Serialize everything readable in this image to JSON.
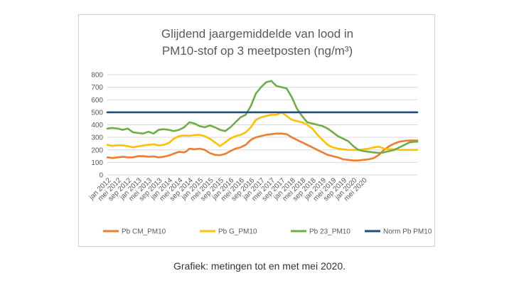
{
  "caption": "Grafiek: metingen tot en met mei 2020.",
  "chart_data": {
    "type": "line",
    "title": [
      "Glijdend jaargemiddelde van lood in",
      "PM10-stof op 3 meetposten (ng/m³)"
    ],
    "xlabel": "",
    "ylabel": "",
    "ylim": [
      0,
      800
    ],
    "yticks": [
      0,
      100,
      200,
      300,
      400,
      500,
      600,
      700,
      800
    ],
    "grid": "horizontal",
    "legend_position": "bottom",
    "x_start": "jan 2012",
    "x_end": "mei 2020",
    "tick_labels": [
      "jan 2012",
      "mei 2012",
      "sep 2012",
      "jan 2013",
      "mei 2013",
      "sep 2013",
      "jan 2014",
      "mei 2014",
      "sep 2014",
      "jan 2015",
      "mei 2015",
      "sep 2015",
      "jan 2016",
      "mei 2016",
      "sep 2016",
      "jan 2017",
      "mei 2017",
      "sep 2017",
      "jan 2018",
      "mei 2018",
      "sep 2018",
      "jan 2019",
      "mei 2019",
      "sep 2019",
      "jan 2020",
      "mei 2020"
    ],
    "series": [
      {
        "name": "Pb CM_PM10",
        "color": "#ED7D31",
        "values": [
          [
            0,
            140
          ],
          [
            2,
            135
          ],
          [
            4,
            140
          ],
          [
            6,
            145
          ],
          [
            8,
            140
          ],
          [
            10,
            140
          ],
          [
            12,
            150
          ],
          [
            14,
            150
          ],
          [
            16,
            145
          ],
          [
            18,
            148
          ],
          [
            20,
            140
          ],
          [
            22,
            145
          ],
          [
            24,
            155
          ],
          [
            26,
            170
          ],
          [
            28,
            185
          ],
          [
            30,
            180
          ],
          [
            31,
            190
          ],
          [
            32,
            210
          ],
          [
            34,
            205
          ],
          [
            36,
            210
          ],
          [
            38,
            200
          ],
          [
            40,
            175
          ],
          [
            42,
            160
          ],
          [
            44,
            158
          ],
          [
            46,
            168
          ],
          [
            48,
            190
          ],
          [
            50,
            210
          ],
          [
            52,
            220
          ],
          [
            54,
            240
          ],
          [
            56,
            280
          ],
          [
            58,
            300
          ],
          [
            60,
            310
          ],
          [
            62,
            320
          ],
          [
            64,
            325
          ],
          [
            66,
            330
          ],
          [
            68,
            330
          ],
          [
            70,
            325
          ],
          [
            72,
            300
          ],
          [
            74,
            280
          ],
          [
            76,
            260
          ],
          [
            78,
            240
          ],
          [
            80,
            220
          ],
          [
            82,
            200
          ],
          [
            84,
            180
          ],
          [
            86,
            160
          ],
          [
            88,
            150
          ],
          [
            90,
            140
          ],
          [
            92,
            125
          ],
          [
            94,
            120
          ],
          [
            96,
            115
          ],
          [
            98,
            115
          ],
          [
            100,
            120
          ],
          [
            102,
            125
          ],
          [
            104,
            135
          ],
          [
            106,
            160
          ],
          [
            108,
            200
          ],
          [
            110,
            230
          ],
          [
            112,
            250
          ],
          [
            114,
            265
          ],
          [
            116,
            272
          ],
          [
            118,
            275
          ],
          [
            120,
            275
          ],
          [
            121,
            275
          ]
        ]
      },
      {
        "name": "Pb G_PM10",
        "color": "#FFC000",
        "values": [
          [
            0,
            240
          ],
          [
            2,
            232
          ],
          [
            4,
            238
          ],
          [
            6,
            236
          ],
          [
            8,
            230
          ],
          [
            10,
            220
          ],
          [
            12,
            228
          ],
          [
            14,
            235
          ],
          [
            16,
            240
          ],
          [
            18,
            245
          ],
          [
            20,
            235
          ],
          [
            22,
            240
          ],
          [
            24,
            255
          ],
          [
            26,
            290
          ],
          [
            28,
            310
          ],
          [
            30,
            315
          ],
          [
            32,
            312
          ],
          [
            34,
            318
          ],
          [
            36,
            320
          ],
          [
            38,
            310
          ],
          [
            40,
            290
          ],
          [
            42,
            260
          ],
          [
            44,
            230
          ],
          [
            46,
            260
          ],
          [
            48,
            290
          ],
          [
            50,
            310
          ],
          [
            52,
            320
          ],
          [
            54,
            340
          ],
          [
            56,
            380
          ],
          [
            58,
            440
          ],
          [
            60,
            460
          ],
          [
            62,
            470
          ],
          [
            64,
            480
          ],
          [
            66,
            480
          ],
          [
            68,
            500
          ],
          [
            70,
            470
          ],
          [
            72,
            440
          ],
          [
            74,
            430
          ],
          [
            76,
            420
          ],
          [
            78,
            400
          ],
          [
            80,
            370
          ],
          [
            82,
            320
          ],
          [
            84,
            280
          ],
          [
            86,
            240
          ],
          [
            88,
            220
          ],
          [
            90,
            210
          ],
          [
            92,
            205
          ],
          [
            94,
            200
          ],
          [
            96,
            200
          ],
          [
            98,
            200
          ],
          [
            100,
            205
          ],
          [
            102,
            210
          ],
          [
            104,
            220
          ],
          [
            106,
            225
          ],
          [
            108,
            210
          ],
          [
            110,
            205
          ],
          [
            112,
            205
          ],
          [
            114,
            200
          ],
          [
            116,
            200
          ],
          [
            118,
            200
          ],
          [
            120,
            200
          ],
          [
            121,
            200
          ]
        ]
      },
      {
        "name": "Pb 23_PM10",
        "color": "#70AD47",
        "values": [
          [
            0,
            370
          ],
          [
            2,
            375
          ],
          [
            4,
            370
          ],
          [
            6,
            360
          ],
          [
            8,
            370
          ],
          [
            10,
            340
          ],
          [
            12,
            335
          ],
          [
            14,
            330
          ],
          [
            16,
            345
          ],
          [
            18,
            330
          ],
          [
            20,
            360
          ],
          [
            22,
            365
          ],
          [
            24,
            360
          ],
          [
            26,
            350
          ],
          [
            28,
            360
          ],
          [
            30,
            380
          ],
          [
            32,
            420
          ],
          [
            34,
            410
          ],
          [
            36,
            390
          ],
          [
            38,
            380
          ],
          [
            40,
            395
          ],
          [
            42,
            380
          ],
          [
            44,
            360
          ],
          [
            46,
            350
          ],
          [
            48,
            380
          ],
          [
            50,
            420
          ],
          [
            52,
            460
          ],
          [
            54,
            480
          ],
          [
            56,
            550
          ],
          [
            58,
            650
          ],
          [
            60,
            700
          ],
          [
            62,
            740
          ],
          [
            64,
            750
          ],
          [
            66,
            710
          ],
          [
            68,
            700
          ],
          [
            70,
            690
          ],
          [
            72,
            620
          ],
          [
            74,
            530
          ],
          [
            76,
            470
          ],
          [
            78,
            420
          ],
          [
            80,
            410
          ],
          [
            82,
            400
          ],
          [
            84,
            390
          ],
          [
            86,
            370
          ],
          [
            88,
            340
          ],
          [
            90,
            310
          ],
          [
            92,
            290
          ],
          [
            94,
            270
          ],
          [
            96,
            230
          ],
          [
            98,
            200
          ],
          [
            100,
            190
          ],
          [
            102,
            185
          ],
          [
            104,
            180
          ],
          [
            106,
            175
          ],
          [
            108,
            180
          ],
          [
            110,
            190
          ],
          [
            112,
            200
          ],
          [
            114,
            220
          ],
          [
            116,
            240
          ],
          [
            118,
            260
          ],
          [
            120,
            265
          ],
          [
            121,
            265
          ]
        ]
      },
      {
        "name": "Norm Pb PM10",
        "color": "#1F4E79",
        "values": [
          [
            0,
            500
          ],
          [
            121,
            500
          ]
        ]
      }
    ]
  }
}
